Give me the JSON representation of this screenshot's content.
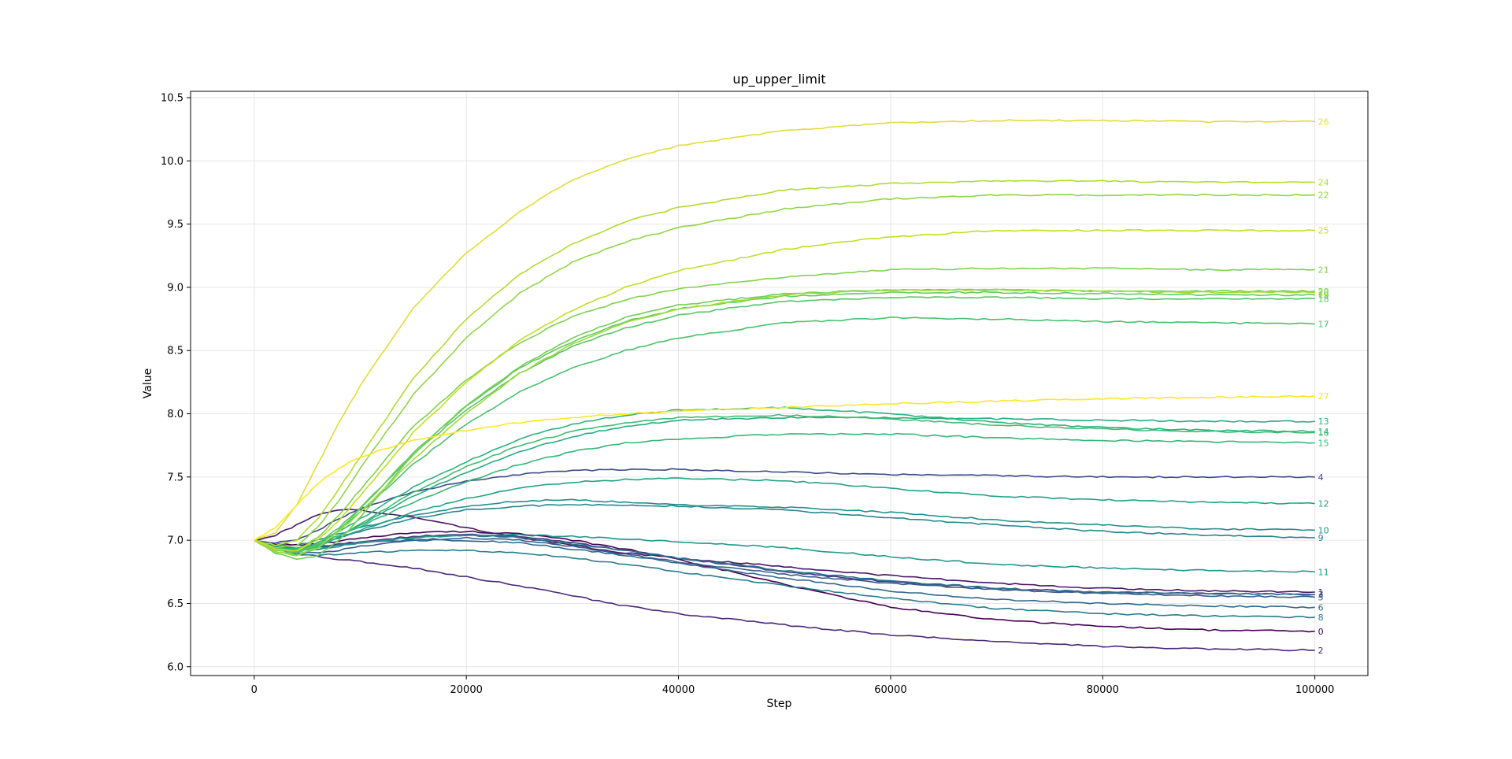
{
  "chart_data": {
    "type": "line",
    "title": "up_upper_limit",
    "xlabel": "Step",
    "ylabel": "Value",
    "xlim": [
      -6000,
      105000
    ],
    "ylim": [
      5.93,
      10.55
    ],
    "x_ticks": [
      0,
      20000,
      40000,
      60000,
      80000,
      100000
    ],
    "y_ticks": [
      6.0,
      6.5,
      7.0,
      7.5,
      8.0,
      8.5,
      9.0,
      9.5,
      10.0,
      10.5
    ],
    "x_tick_labels": [
      "0",
      "20000",
      "40000",
      "60000",
      "80000",
      "100000"
    ],
    "y_tick_labels": [
      "6.0",
      "6.5",
      "7.0",
      "7.5",
      "8.0",
      "8.5",
      "9.0",
      "9.5",
      "10.0",
      "10.5"
    ],
    "grid": true,
    "legend": "none",
    "series_label_position": "right-end",
    "x": [
      0,
      2000,
      4000,
      6000,
      8000,
      10000,
      15000,
      20000,
      25000,
      30000,
      35000,
      40000,
      50000,
      60000,
      70000,
      80000,
      90000,
      100000
    ],
    "series": [
      {
        "name": "0",
        "color": "#440154",
        "values": [
          7.0,
          6.97,
          6.96,
          6.97,
          6.99,
          7.02,
          7.06,
          7.07,
          7.05,
          7.0,
          6.93,
          6.85,
          6.65,
          6.47,
          6.37,
          6.32,
          6.29,
          6.28
        ]
      },
      {
        "name": "1",
        "color": "#481668",
        "values": [
          7.0,
          7.04,
          7.12,
          7.2,
          7.24,
          7.24,
          7.18,
          7.1,
          7.02,
          6.96,
          6.9,
          6.86,
          6.79,
          6.72,
          6.66,
          6.62,
          6.6,
          6.59
        ]
      },
      {
        "name": "2",
        "color": "#482878",
        "values": [
          7.0,
          6.95,
          6.9,
          6.87,
          6.85,
          6.83,
          6.78,
          6.71,
          6.64,
          6.56,
          6.48,
          6.42,
          6.33,
          6.25,
          6.2,
          6.16,
          6.14,
          6.13
        ]
      },
      {
        "name": "3",
        "color": "#443983",
        "values": [
          7.0,
          6.95,
          6.93,
          6.95,
          6.97,
          6.99,
          7.03,
          7.05,
          7.03,
          6.98,
          6.92,
          6.86,
          6.75,
          6.67,
          6.62,
          6.59,
          6.58,
          6.57
        ]
      },
      {
        "name": "4",
        "color": "#3e4989",
        "values": [
          7.0,
          6.98,
          7.0,
          7.08,
          7.17,
          7.25,
          7.38,
          7.47,
          7.52,
          7.55,
          7.56,
          7.56,
          7.54,
          7.52,
          7.51,
          7.5,
          7.5,
          7.5
        ]
      },
      {
        "name": "5",
        "color": "#375a8c",
        "values": [
          7.0,
          6.93,
          6.9,
          6.9,
          6.92,
          6.95,
          7.0,
          7.02,
          7.0,
          6.95,
          6.89,
          6.83,
          6.73,
          6.66,
          6.61,
          6.58,
          6.56,
          6.55
        ]
      },
      {
        "name": "6",
        "color": "#31688e",
        "values": [
          7.0,
          6.94,
          6.93,
          6.94,
          6.96,
          6.98,
          7.0,
          7.0,
          6.98,
          6.93,
          6.88,
          6.82,
          6.7,
          6.6,
          6.53,
          6.5,
          6.48,
          6.47
        ]
      },
      {
        "name": "7",
        "color": "#2c728e",
        "values": [
          7.0,
          6.95,
          6.92,
          6.93,
          6.96,
          6.98,
          7.02,
          7.04,
          7.02,
          6.97,
          6.92,
          6.86,
          6.76,
          6.68,
          6.62,
          6.59,
          6.58,
          6.57
        ]
      },
      {
        "name": "8",
        "color": "#287c8e",
        "values": [
          7.0,
          6.93,
          6.89,
          6.88,
          6.89,
          6.9,
          6.92,
          6.92,
          6.9,
          6.86,
          6.81,
          6.75,
          6.64,
          6.54,
          6.46,
          6.42,
          6.4,
          6.39
        ]
      },
      {
        "name": "9",
        "color": "#24868e",
        "values": [
          7.0,
          6.95,
          6.94,
          6.97,
          7.02,
          7.07,
          7.17,
          7.24,
          7.27,
          7.28,
          7.28,
          7.27,
          7.24,
          7.18,
          7.12,
          7.07,
          7.04,
          7.02
        ]
      },
      {
        "name": "10",
        "color": "#21908d",
        "values": [
          7.0,
          6.96,
          6.96,
          7.0,
          7.05,
          7.1,
          7.2,
          7.27,
          7.31,
          7.32,
          7.3,
          7.28,
          7.26,
          7.22,
          7.16,
          7.12,
          7.09,
          7.08
        ]
      },
      {
        "name": "11",
        "color": "#1f998a",
        "values": [
          7.0,
          6.94,
          6.92,
          6.93,
          6.95,
          6.98,
          7.02,
          7.04,
          7.04,
          7.03,
          7.01,
          6.99,
          6.94,
          6.87,
          6.81,
          6.78,
          6.76,
          6.75
        ]
      },
      {
        "name": "12",
        "color": "#20a386",
        "values": [
          7.0,
          6.95,
          6.93,
          6.96,
          7.02,
          7.08,
          7.22,
          7.33,
          7.41,
          7.46,
          7.48,
          7.49,
          7.47,
          7.41,
          7.35,
          7.32,
          7.3,
          7.29
        ]
      },
      {
        "name": "13",
        "color": "#26ad81",
        "values": [
          7.0,
          6.93,
          6.91,
          6.95,
          7.03,
          7.12,
          7.35,
          7.54,
          7.7,
          7.82,
          7.9,
          7.95,
          7.97,
          7.97,
          7.96,
          7.95,
          7.94,
          7.94
        ]
      },
      {
        "name": "14",
        "color": "#2db27d",
        "values": [
          7.0,
          6.93,
          6.92,
          6.98,
          7.07,
          7.17,
          7.42,
          7.62,
          7.8,
          7.92,
          7.99,
          8.03,
          8.05,
          8.0,
          7.93,
          7.89,
          7.87,
          7.86
        ]
      },
      {
        "name": "15",
        "color": "#35b779",
        "values": [
          7.0,
          6.94,
          6.93,
          6.97,
          7.04,
          7.11,
          7.3,
          7.46,
          7.6,
          7.7,
          7.77,
          7.8,
          7.84,
          7.84,
          7.81,
          7.79,
          7.78,
          7.77
        ]
      },
      {
        "name": "16",
        "color": "#40bd72",
        "values": [
          7.0,
          6.93,
          6.91,
          6.95,
          7.03,
          7.13,
          7.38,
          7.58,
          7.75,
          7.86,
          7.93,
          7.97,
          7.99,
          7.96,
          7.91,
          7.88,
          7.86,
          7.85
        ]
      },
      {
        "name": "17",
        "color": "#4ac16d",
        "values": [
          7.0,
          6.93,
          6.9,
          6.96,
          7.08,
          7.22,
          7.6,
          7.92,
          8.17,
          8.36,
          8.5,
          8.6,
          8.72,
          8.76,
          8.75,
          8.73,
          8.72,
          8.71
        ]
      },
      {
        "name": "18",
        "color": "#56c667",
        "values": [
          7.0,
          6.92,
          6.9,
          6.97,
          7.1,
          7.26,
          7.68,
          8.03,
          8.32,
          8.53,
          8.68,
          8.78,
          8.89,
          8.92,
          8.92,
          8.91,
          8.91,
          8.91
        ]
      },
      {
        "name": "19",
        "color": "#63cb5f",
        "values": [
          7.0,
          6.91,
          6.88,
          6.94,
          7.08,
          7.25,
          7.69,
          8.06,
          8.36,
          8.57,
          8.73,
          8.83,
          8.93,
          8.96,
          8.96,
          8.95,
          8.94,
          8.94
        ]
      },
      {
        "name": "20",
        "color": "#71cf57",
        "values": [
          7.0,
          6.9,
          6.85,
          6.88,
          7.0,
          7.18,
          7.68,
          8.07,
          8.37,
          8.6,
          8.76,
          8.86,
          8.95,
          8.98,
          8.98,
          8.97,
          8.97,
          8.97
        ]
      },
      {
        "name": "21",
        "color": "#7fd34e",
        "values": [
          7.0,
          6.92,
          6.92,
          7.02,
          7.2,
          7.4,
          7.9,
          8.27,
          8.56,
          8.77,
          8.9,
          8.99,
          9.08,
          9.14,
          9.15,
          9.15,
          9.14,
          9.14
        ]
      },
      {
        "name": "22",
        "color": "#8fd744",
        "values": [
          7.0,
          6.94,
          6.96,
          7.1,
          7.32,
          7.57,
          8.15,
          8.6,
          8.95,
          9.2,
          9.36,
          9.47,
          9.62,
          9.7,
          9.73,
          9.73,
          9.73,
          9.73
        ]
      },
      {
        "name": "23",
        "color": "#a0da39",
        "values": [
          7.0,
          6.91,
          6.88,
          6.94,
          7.07,
          7.22,
          7.64,
          8.0,
          8.32,
          8.55,
          8.72,
          8.83,
          8.94,
          8.98,
          8.98,
          8.97,
          8.96,
          8.96
        ]
      },
      {
        "name": "24",
        "color": "#b0dd2f",
        "values": [
          7.0,
          6.96,
          7.0,
          7.17,
          7.41,
          7.66,
          8.28,
          8.75,
          9.1,
          9.34,
          9.52,
          9.63,
          9.77,
          9.82,
          9.84,
          9.84,
          9.83,
          9.83
        ]
      },
      {
        "name": "25",
        "color": "#c2df23",
        "values": [
          7.0,
          6.93,
          6.92,
          7.0,
          7.16,
          7.35,
          7.85,
          8.25,
          8.58,
          8.82,
          9.0,
          9.13,
          9.3,
          9.4,
          9.45,
          9.45,
          9.45,
          9.45
        ]
      },
      {
        "name": "26",
        "color": "#e1dd37",
        "values": [
          7.0,
          7.06,
          7.28,
          7.6,
          7.93,
          8.22,
          8.84,
          9.27,
          9.6,
          9.85,
          10.01,
          10.12,
          10.24,
          10.3,
          10.32,
          10.32,
          10.31,
          10.31
        ]
      },
      {
        "name": "27",
        "color": "#fde725",
        "values": [
          7.0,
          7.1,
          7.28,
          7.45,
          7.57,
          7.66,
          7.79,
          7.87,
          7.93,
          7.97,
          8.0,
          8.02,
          8.05,
          8.08,
          8.1,
          8.12,
          8.13,
          8.14
        ]
      }
    ]
  }
}
